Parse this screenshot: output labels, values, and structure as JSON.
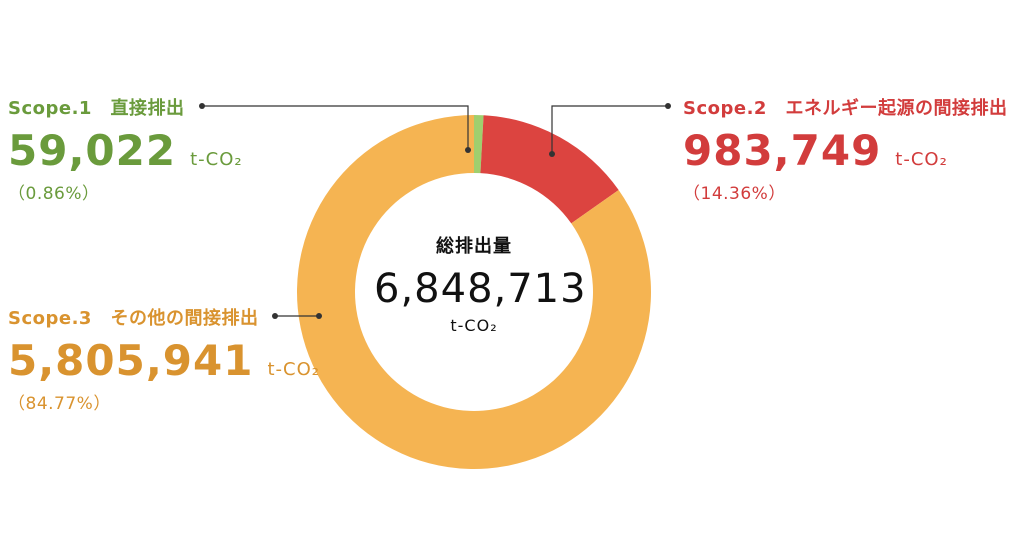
{
  "chart_data": {
    "type": "pie",
    "center": {
      "title": "総排出量",
      "value": "6,848,713",
      "unit": "t-CO₂",
      "total": 6848713
    },
    "series": [
      {
        "name": "Scope.1　直接排出",
        "value": 59022,
        "value_label": "59,022",
        "unit": "t-CO₂",
        "percent_label": "（0.86%）",
        "percent": 0.86,
        "color": "#9fcf6e",
        "text_color": "#6a9b3c"
      },
      {
        "name": "Scope.2　エネルギー起源の間接排出",
        "value": 983749,
        "value_label": "983,749",
        "unit": "t-CO₂",
        "percent_label": "（14.36%）",
        "percent": 14.36,
        "color": "#dc4440",
        "text_color": "#d23c3c"
      },
      {
        "name": "Scope.3　その他の間接排出",
        "value": 5805941,
        "value_label": "5,805,941",
        "unit": "t-CO₂",
        "percent_label": "（84.77%）",
        "percent": 84.77,
        "color": "#f5b452",
        "text_color": "#d9932f"
      }
    ],
    "leader_color": "#333333"
  }
}
